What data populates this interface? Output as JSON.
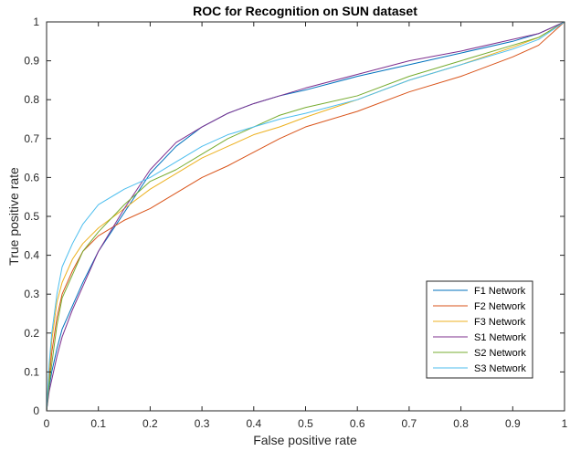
{
  "chart_data": {
    "type": "line",
    "title": "ROC for Recognition on SUN dataset",
    "xlabel": "False positive rate",
    "ylabel": "True positive rate",
    "xlim": [
      0,
      1
    ],
    "ylim": [
      0,
      1
    ],
    "xticks": [
      "0",
      "0.1",
      "0.2",
      "0.3",
      "0.4",
      "0.5",
      "0.6",
      "0.7",
      "0.8",
      "0.9",
      "1"
    ],
    "yticks": [
      "0",
      "0.1",
      "0.2",
      "0.3",
      "0.4",
      "0.5",
      "0.6",
      "0.7",
      "0.8",
      "0.9",
      "1"
    ],
    "grid": false,
    "legend_position": "bottom-right",
    "x": [
      0,
      0.005,
      0.01,
      0.02,
      0.03,
      0.05,
      0.07,
      0.1,
      0.15,
      0.2,
      0.25,
      0.3,
      0.35,
      0.4,
      0.45,
      0.5,
      0.6,
      0.7,
      0.8,
      0.9,
      0.95,
      1
    ],
    "series": [
      {
        "name": "F1 Network",
        "color": "#0072BD",
        "values": [
          0,
          0.06,
          0.1,
          0.16,
          0.21,
          0.27,
          0.33,
          0.41,
          0.51,
          0.61,
          0.68,
          0.73,
          0.765,
          0.79,
          0.81,
          0.825,
          0.86,
          0.89,
          0.92,
          0.95,
          0.97,
          1
        ]
      },
      {
        "name": "F2 Network",
        "color": "#D95319",
        "values": [
          0,
          0.08,
          0.15,
          0.24,
          0.3,
          0.36,
          0.41,
          0.45,
          0.49,
          0.52,
          0.56,
          0.6,
          0.63,
          0.665,
          0.7,
          0.73,
          0.77,
          0.82,
          0.86,
          0.91,
          0.94,
          1
        ]
      },
      {
        "name": "F3 Network",
        "color": "#EDB120",
        "values": [
          0,
          0.1,
          0.18,
          0.28,
          0.33,
          0.39,
          0.43,
          0.47,
          0.52,
          0.57,
          0.61,
          0.65,
          0.68,
          0.71,
          0.73,
          0.755,
          0.8,
          0.85,
          0.89,
          0.935,
          0.96,
          1
        ]
      },
      {
        "name": "S1 Network",
        "color": "#7E2F8E",
        "values": [
          0,
          0.05,
          0.08,
          0.14,
          0.19,
          0.26,
          0.32,
          0.41,
          0.52,
          0.62,
          0.69,
          0.73,
          0.765,
          0.79,
          0.81,
          0.83,
          0.865,
          0.9,
          0.925,
          0.955,
          0.97,
          1
        ]
      },
      {
        "name": "S2 Network",
        "color": "#77AC30",
        "values": [
          0,
          0.07,
          0.12,
          0.22,
          0.29,
          0.35,
          0.41,
          0.46,
          0.53,
          0.59,
          0.62,
          0.66,
          0.7,
          0.73,
          0.76,
          0.78,
          0.81,
          0.86,
          0.9,
          0.94,
          0.96,
          1
        ]
      },
      {
        "name": "S3 Network",
        "color": "#4DBEEE",
        "values": [
          0,
          0.12,
          0.2,
          0.3,
          0.37,
          0.43,
          0.48,
          0.53,
          0.57,
          0.6,
          0.64,
          0.68,
          0.71,
          0.73,
          0.75,
          0.765,
          0.8,
          0.85,
          0.89,
          0.93,
          0.955,
          1
        ]
      }
    ]
  }
}
